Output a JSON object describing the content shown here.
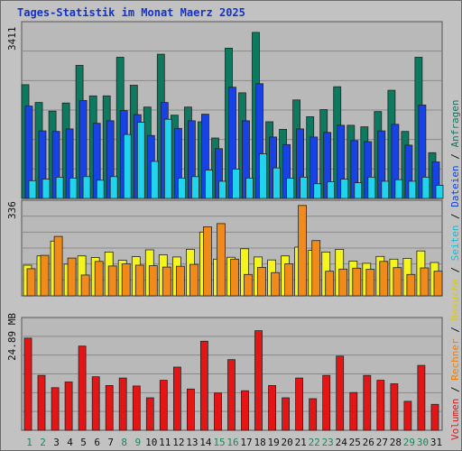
{
  "title": "Tages-Statistik im Monat Maerz 2025",
  "colors": {
    "background": "#c2c2c2",
    "title": "#1533c6",
    "anfragen": "#0d7a5f",
    "dateien": "#1742e6",
    "seiten": "#1fd4ec",
    "besuche": "#f5f51e",
    "rechner": "#f08a1a",
    "volumen": "#e61515",
    "weekend_label": "#1a8a5a",
    "weekday_label": "#111111"
  },
  "legend": [
    {
      "text": "Volumen",
      "color": "#d81e1e"
    },
    {
      "text": "/",
      "color": "#111111"
    },
    {
      "text": "Rechner",
      "color": "#ee7f10"
    },
    {
      "text": "/",
      "color": "#111111"
    },
    {
      "text": "Besuche",
      "color": "#d8c81a"
    },
    {
      "text": "/",
      "color": "#111111"
    },
    {
      "text": "Seiten",
      "color": "#1bbad0"
    },
    {
      "text": "/",
      "color": "#111111"
    },
    {
      "text": "Dateien",
      "color": "#1545d8"
    },
    {
      "text": "/",
      "color": "#111111"
    },
    {
      "text": "Anfragen",
      "color": "#0d7a5f"
    }
  ],
  "chart_data": [
    {
      "type": "bar",
      "panel": "top",
      "ymax_label": "3411",
      "ylim": [
        0,
        3411
      ],
      "categories": [
        "1",
        "2",
        "3",
        "4",
        "5",
        "6",
        "7",
        "8",
        "9",
        "10",
        "11",
        "12",
        "13",
        "14",
        "15",
        "16",
        "17",
        "18",
        "19",
        "20",
        "21",
        "22",
        "23",
        "24",
        "25",
        "26",
        "27",
        "28",
        "29",
        "30",
        "31"
      ],
      "weekend": [
        1,
        2,
        8,
        9,
        15,
        16,
        22,
        23,
        29,
        30
      ],
      "series": [
        {
          "name": "Anfragen",
          "values": [
            2240,
            1890,
            1720,
            1880,
            2620,
            2020,
            2020,
            2780,
            2230,
            1800,
            2840,
            1640,
            1800,
            1510,
            1190,
            2960,
            2080,
            3270,
            1510,
            1360,
            1940,
            1610,
            1750,
            2200,
            1440,
            1410,
            1710,
            2130,
            1320,
            2780,
            900
          ]
        },
        {
          "name": "Dateien",
          "values": [
            1820,
            1330,
            1320,
            1370,
            1930,
            1480,
            1530,
            1730,
            1650,
            1240,
            1890,
            1380,
            1530,
            1660,
            980,
            2190,
            1530,
            2260,
            1210,
            1060,
            1370,
            1210,
            1300,
            1440,
            1140,
            1120,
            1330,
            1460,
            1050,
            1840,
            720
          ]
        },
        {
          "name": "Seiten",
          "values": [
            350,
            380,
            420,
            400,
            430,
            360,
            430,
            1260,
            1500,
            730,
            1560,
            400,
            430,
            560,
            340,
            580,
            400,
            880,
            600,
            400,
            420,
            290,
            330,
            380,
            310,
            420,
            340,
            370,
            340,
            420,
            260
          ]
        }
      ]
    },
    {
      "type": "bar",
      "panel": "middle",
      "ymax_label": "336",
      "ylim": [
        0,
        336
      ],
      "categories": [
        "1",
        "2",
        "3",
        "4",
        "5",
        "6",
        "7",
        "8",
        "9",
        "10",
        "11",
        "12",
        "13",
        "14",
        "15",
        "16",
        "17",
        "18",
        "19",
        "20",
        "21",
        "22",
        "23",
        "24",
        "25",
        "26",
        "27",
        "28",
        "29",
        "30",
        "31"
      ],
      "series": [
        {
          "name": "Besuche",
          "values": [
            112,
            146,
            200,
            116,
            146,
            140,
            160,
            130,
            143,
            168,
            150,
            142,
            170,
            233,
            134,
            141,
            172,
            142,
            131,
            146,
            178,
            166,
            160,
            170,
            127,
            119,
            144,
            134,
            137,
            164,
            122
          ]
        },
        {
          "name": "Rechner",
          "values": [
            99,
            148,
            217,
            138,
            76,
            126,
            109,
            117,
            112,
            110,
            105,
            108,
            115,
            252,
            264,
            134,
            78,
            104,
            85,
            117,
            330,
            202,
            90,
            98,
            101,
            97,
            126,
            103,
            78,
            102,
            90
          ]
        }
      ]
    },
    {
      "type": "bar",
      "panel": "bottom",
      "ymax_label": "24.89 MB",
      "ylim": [
        0,
        24.89
      ],
      "categories": [
        "1",
        "2",
        "3",
        "4",
        "5",
        "6",
        "7",
        "8",
        "9",
        "10",
        "11",
        "12",
        "13",
        "14",
        "15",
        "16",
        "17",
        "18",
        "19",
        "20",
        "21",
        "22",
        "23",
        "24",
        "25",
        "26",
        "27",
        "28",
        "29",
        "30",
        "31"
      ],
      "series": [
        {
          "name": "Volumen",
          "values": [
            21.0,
            12.5,
            9.7,
            11.0,
            19.2,
            12.2,
            10.2,
            11.9,
            10.1,
            7.4,
            11.4,
            14.4,
            9.4,
            20.3,
            8.5,
            16.1,
            9.0,
            22.7,
            10.2,
            7.4,
            11.9,
            7.2,
            12.5,
            16.9,
            8.6,
            12.5,
            11.4,
            10.6,
            6.6,
            14.8,
            5.9
          ]
        }
      ]
    }
  ]
}
